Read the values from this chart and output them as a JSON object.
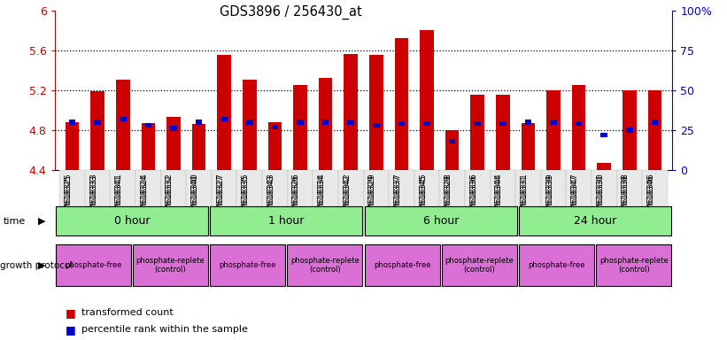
{
  "title": "GDS3896 / 256430_at",
  "samples": [
    "GSM618325",
    "GSM618333",
    "GSM618341",
    "GSM618324",
    "GSM618332",
    "GSM618340",
    "GSM618327",
    "GSM618335",
    "GSM618343",
    "GSM618326",
    "GSM618334",
    "GSM618342",
    "GSM618329",
    "GSM618337",
    "GSM618345",
    "GSM618328",
    "GSM618336",
    "GSM618344",
    "GSM618331",
    "GSM618339",
    "GSM618347",
    "GSM618330",
    "GSM618338",
    "GSM618346"
  ],
  "red_values": [
    4.88,
    5.19,
    5.3,
    4.87,
    4.93,
    4.86,
    5.55,
    5.3,
    4.88,
    5.25,
    5.32,
    5.56,
    5.55,
    5.72,
    5.8,
    4.8,
    5.15,
    5.15,
    4.87,
    5.2,
    5.25,
    4.47,
    5.2,
    5.2
  ],
  "blue_percentile": [
    30,
    30,
    32,
    28,
    26,
    30,
    32,
    30,
    27,
    30,
    30,
    30,
    28,
    29,
    29,
    18,
    29,
    29,
    30,
    30,
    29,
    22,
    25,
    30
  ],
  "ylim_left": [
    4.4,
    6.0
  ],
  "ylim_right": [
    0,
    100
  ],
  "yticks_left": [
    4.4,
    4.8,
    5.2,
    5.6,
    6.0
  ],
  "ytick_labels_left": [
    "4.4",
    "4.8",
    "5.2",
    "5.6",
    "6"
  ],
  "yticks_right": [
    0,
    25,
    50,
    75,
    100
  ],
  "ytick_labels_right": [
    "0",
    "25",
    "50",
    "75",
    "100%"
  ],
  "hlines": [
    4.8,
    5.2,
    5.6
  ],
  "bar_color_red": "#CC0000",
  "bar_color_blue": "#0000CC",
  "background_color": "#ffffff",
  "tick_color_left": "#CC0000",
  "tick_color_right": "#0000CC",
  "time_labels": [
    "0 hour",
    "1 hour",
    "6 hour",
    "24 hour"
  ],
  "time_starts": [
    0,
    6,
    12,
    18
  ],
  "time_ends": [
    6,
    12,
    18,
    24
  ],
  "time_color": "#90EE90",
  "proto_labels": [
    "phosphate-free",
    "phosphate-replete\n(control)",
    "phosphate-free",
    "phosphate-replete\n(control)",
    "phosphate-free",
    "phosphate-replete\n(control)",
    "phosphate-free",
    "phosphate-replete\n(control)"
  ],
  "proto_starts": [
    0,
    3,
    6,
    9,
    12,
    15,
    18,
    21
  ],
  "proto_ends": [
    3,
    6,
    9,
    12,
    15,
    18,
    21,
    24
  ],
  "proto_color": "#DA70D6"
}
